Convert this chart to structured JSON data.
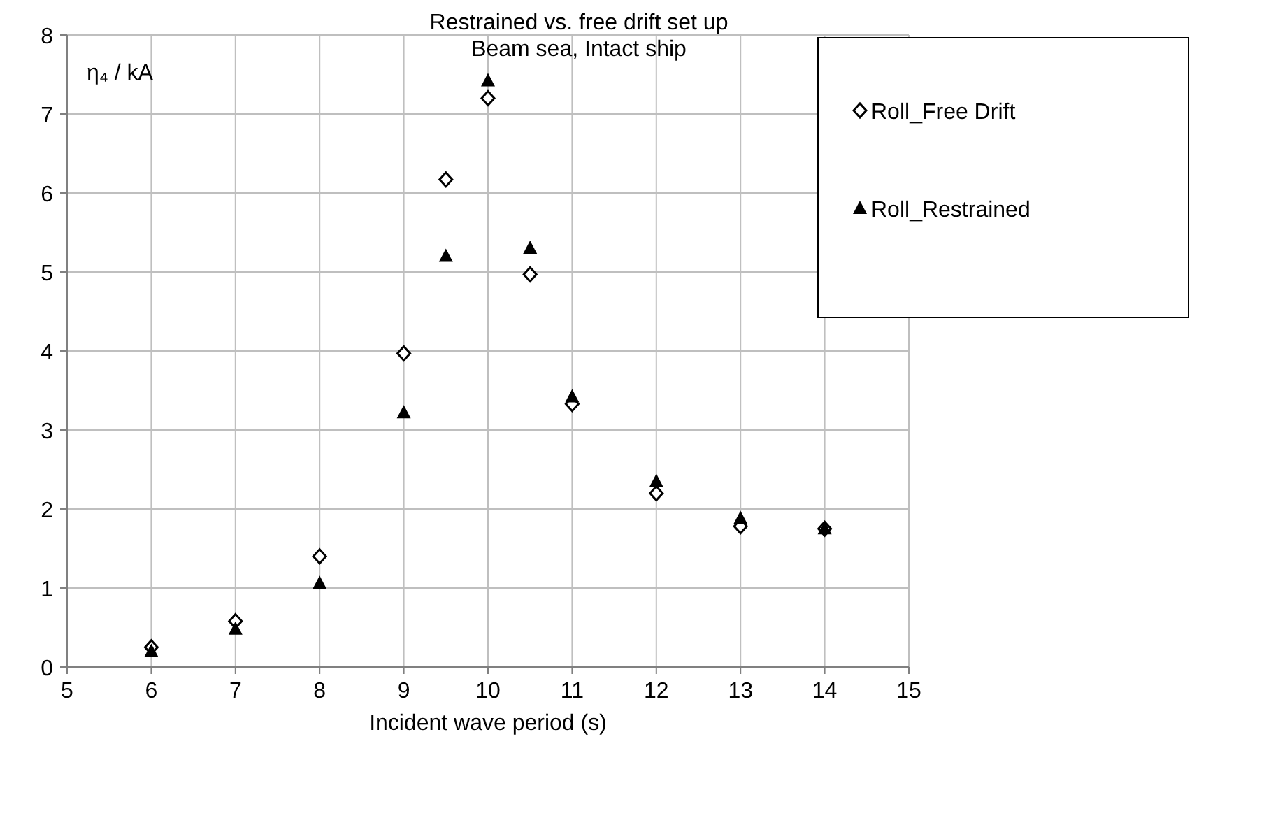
{
  "chart_data": {
    "type": "scatter",
    "title": "Restrained vs. free drift set up\nBeam sea, Intact ship",
    "xlabel": "Incident wave period (s)",
    "ylabel": "η₄ / kA",
    "x": [
      6,
      7,
      8,
      9,
      9.5,
      10,
      10.5,
      11,
      12,
      13,
      14
    ],
    "series": [
      {
        "name": "Roll_Free Drift",
        "color": "#000000",
        "marker": "diamond",
        "values": [
          0.25,
          0.58,
          1.4,
          3.97,
          6.17,
          7.2,
          4.97,
          3.33,
          2.2,
          1.78,
          1.75
        ]
      },
      {
        "name": "Roll_Restrained",
        "color": "#000000",
        "marker": "triangle",
        "values": [
          0.2,
          0.48,
          1.06,
          3.22,
          5.2,
          7.42,
          5.3,
          3.42,
          2.35,
          1.88,
          1.75
        ]
      }
    ],
    "xlim": [
      5,
      15
    ],
    "xticks": [
      5,
      6,
      7,
      8,
      9,
      10,
      11,
      12,
      13,
      14,
      15
    ],
    "ylim": [
      0,
      8
    ],
    "yticks": [
      0,
      1,
      2,
      3,
      4,
      5,
      6,
      7,
      8
    ],
    "grid": true,
    "legend": "top right"
  }
}
